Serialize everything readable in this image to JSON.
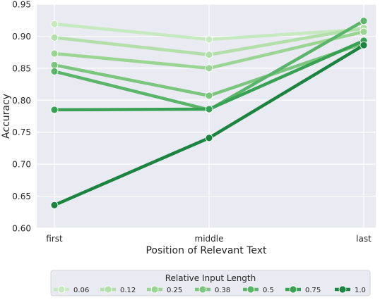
{
  "chart_data": {
    "type": "line",
    "title": "",
    "xlabel": "Position of Relevant Text",
    "ylabel": "Accuracy",
    "categories": [
      "first",
      "middle",
      "last"
    ],
    "ylim": [
      0.6,
      0.95
    ],
    "yticks": [
      "0.60",
      "0.65",
      "0.70",
      "0.75",
      "0.80",
      "0.85",
      "0.90",
      "0.95"
    ],
    "grid": true,
    "legend": {
      "title": "Relative Input Length",
      "placement": "bottom"
    },
    "series": [
      {
        "name": "0.06",
        "color": "#c7e9c0",
        "values": [
          0.919,
          0.895,
          0.911
        ]
      },
      {
        "name": "0.12",
        "color": "#b3e0aa",
        "values": [
          0.898,
          0.871,
          0.913
        ]
      },
      {
        "name": "0.25",
        "color": "#9ad594",
        "values": [
          0.873,
          0.85,
          0.907
        ]
      },
      {
        "name": "0.38",
        "color": "#7cc57e",
        "values": [
          0.855,
          0.807,
          0.889
        ]
      },
      {
        "name": "0.5",
        "color": "#5ab56a",
        "values": [
          0.845,
          0.785,
          0.924
        ]
      },
      {
        "name": "0.75",
        "color": "#38a153",
        "values": [
          0.785,
          0.786,
          0.893
        ]
      },
      {
        "name": "1.0",
        "color": "#1a8440",
        "values": [
          0.636,
          0.741,
          0.886
        ]
      }
    ]
  }
}
